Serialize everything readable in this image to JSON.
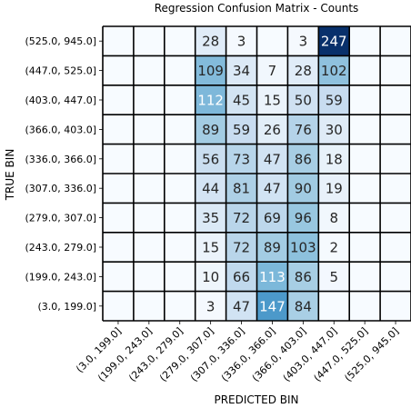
{
  "chart_data": {
    "type": "heatmap",
    "title": "Regression Confusion Matrix - Counts",
    "xlabel": "PREDICTED BIN",
    "ylabel": "TRUE BIN",
    "x_categories": [
      "(3.0, 199.0]",
      "(199.0, 243.0]",
      "(243.0, 279.0]",
      "(279.0, 307.0]",
      "(307.0, 336.0]",
      "(336.0, 366.0]",
      "(366.0, 403.0]",
      "(403.0, 447.0]",
      "(447.0, 525.0]",
      "(525.0, 945.0]"
    ],
    "y_categories": [
      "(525.0, 945.0]",
      "(447.0, 525.0]",
      "(403.0, 447.0]",
      "(366.0, 403.0]",
      "(336.0, 366.0]",
      "(307.0, 336.0]",
      "(279.0, 307.0]",
      "(243.0, 279.0]",
      "(199.0, 243.0]",
      "(3.0, 199.0]"
    ],
    "values": [
      [
        0,
        0,
        0,
        28,
        3,
        0,
        3,
        247,
        0,
        0
      ],
      [
        0,
        0,
        0,
        109,
        34,
        7,
        28,
        102,
        0,
        0
      ],
      [
        0,
        0,
        0,
        112,
        45,
        15,
        50,
        59,
        0,
        0
      ],
      [
        0,
        0,
        0,
        89,
        59,
        26,
        76,
        30,
        0,
        0
      ],
      [
        0,
        0,
        0,
        56,
        73,
        47,
        86,
        18,
        0,
        0
      ],
      [
        0,
        0,
        0,
        44,
        81,
        47,
        90,
        19,
        0,
        0
      ],
      [
        0,
        0,
        0,
        35,
        72,
        69,
        96,
        8,
        0,
        0
      ],
      [
        0,
        0,
        0,
        15,
        72,
        89,
        103,
        2,
        0,
        0
      ],
      [
        0,
        0,
        0,
        10,
        66,
        113,
        86,
        5,
        0,
        0
      ],
      [
        0,
        0,
        0,
        3,
        47,
        147,
        84,
        0,
        0,
        0
      ]
    ],
    "colormap": "Blues",
    "color_low": "#f7fbff",
    "color_high": "#08306b",
    "grid_color": "#000000",
    "grid": true,
    "legend": "none"
  }
}
